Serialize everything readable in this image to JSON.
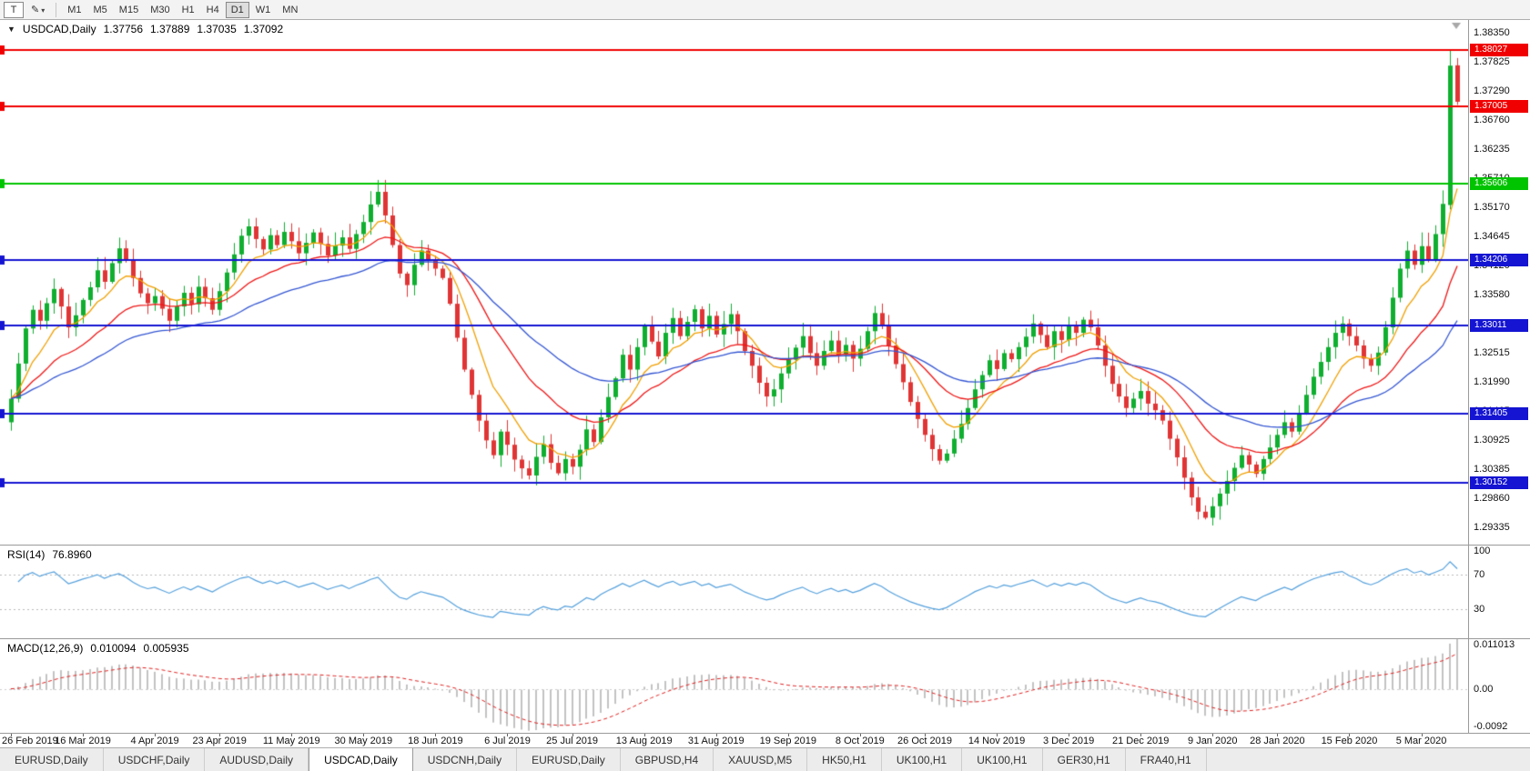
{
  "toolbar": {
    "text_tool": "T",
    "draw_tool_icon": "✎",
    "dropdown_icon": "▾",
    "timeframes": [
      "M1",
      "M5",
      "M15",
      "M30",
      "H1",
      "H4",
      "D1",
      "W1",
      "MN"
    ],
    "active_timeframe": "D1"
  },
  "chart_header": {
    "collapse_icon": "▼",
    "symbol": "USDCAD,Daily",
    "open": "1.37756",
    "high": "1.37889",
    "low": "1.37035",
    "close": "1.37092"
  },
  "chart_data": {
    "type": "candlestick",
    "symbol": "USDCAD",
    "timeframe": "Daily",
    "y_ticks": [
      "1.38350",
      "1.37825",
      "1.37290",
      "1.36760",
      "1.36235",
      "1.35710",
      "1.35170",
      "1.34645",
      "1.34120",
      "1.33580",
      "1.33055",
      "1.32515",
      "1.31990",
      "1.31465",
      "1.30925",
      "1.30385",
      "1.29860",
      "1.29335"
    ],
    "price_at_first_tick": 1.3835,
    "price_at_last_tick": 1.29335,
    "x_ticks": [
      "26 Feb 2019",
      "16 Mar 2019",
      "4 Apr 2019",
      "23 Apr 2019",
      "11 May 2019",
      "30 May 2019",
      "18 Jun 2019",
      "6 Jul 2019",
      "25 Jul 2019",
      "13 Aug 2019",
      "31 Aug 2019",
      "19 Sep 2019",
      "8 Oct 2019",
      "26 Oct 2019",
      "14 Nov 2019",
      "3 Dec 2019",
      "21 Dec 2019",
      "9 Jan 2020",
      "28 Jan 2020",
      "15 Feb 2020",
      "5 Mar 2020"
    ],
    "hlines": [
      {
        "price": 1.38027,
        "label": "1.38027",
        "color": "#f00000"
      },
      {
        "price": 1.37005,
        "label": "1.37005",
        "color": "#f00000"
      },
      {
        "price": 1.35606,
        "label": "1.35606",
        "color": "#00c400"
      },
      {
        "price": 1.34206,
        "label": "1.34206",
        "color": "#1414d2"
      },
      {
        "price": 1.33011,
        "label": "1.33011",
        "color": "#1414d2"
      },
      {
        "price": 1.31405,
        "label": "1.31405",
        "color": "#1414d2"
      },
      {
        "price": 1.30152,
        "label": "1.30152",
        "color": "#1414d2"
      }
    ],
    "first_open": 1.3125,
    "closes": [
      1.3168,
      1.3232,
      1.3296,
      1.333,
      1.331,
      1.3342,
      1.3368,
      1.3336,
      1.3298,
      1.332,
      1.3348,
      1.3371,
      1.3402,
      1.3381,
      1.3415,
      1.3442,
      1.342,
      1.3388,
      1.336,
      1.3342,
      1.3355,
      1.3332,
      1.331,
      1.3336,
      1.3361,
      1.334,
      1.3372,
      1.3351,
      1.333,
      1.3364,
      1.3398,
      1.3431,
      1.3465,
      1.3482,
      1.3459,
      1.344,
      1.3466,
      1.3448,
      1.3472,
      1.3455,
      1.3433,
      1.3452,
      1.3471,
      1.345,
      1.3429,
      1.3447,
      1.3462,
      1.3441,
      1.3468,
      1.349,
      1.3522,
      1.3545,
      1.3502,
      1.3448,
      1.3396,
      1.3375,
      1.3412,
      1.3438,
      1.3421,
      1.3405,
      1.3388,
      1.3341,
      1.3279,
      1.3221,
      1.3175,
      1.3128,
      1.3092,
      1.3065,
      1.3108,
      1.3084,
      1.3057,
      1.3041,
      1.3028,
      1.3062,
      1.3085,
      1.3051,
      1.3032,
      1.3058,
      1.3044,
      1.3075,
      1.3112,
      1.3089,
      1.3134,
      1.3171,
      1.3205,
      1.3248,
      1.3221,
      1.3262,
      1.3301,
      1.3272,
      1.3245,
      1.3288,
      1.3315,
      1.3282,
      1.3308,
      1.3331,
      1.3296,
      1.3319,
      1.3285,
      1.3304,
      1.3322,
      1.3291,
      1.3255,
      1.3228,
      1.3197,
      1.3172,
      1.3185,
      1.3214,
      1.3239,
      1.3261,
      1.3282,
      1.3251,
      1.3228,
      1.3255,
      1.3274,
      1.3248,
      1.3266,
      1.3241,
      1.3259,
      1.3291,
      1.3324,
      1.3302,
      1.3265,
      1.3231,
      1.3198,
      1.3162,
      1.3131,
      1.3102,
      1.3076,
      1.3055,
      1.3068,
      1.3095,
      1.3122,
      1.3151,
      1.3185,
      1.3211,
      1.3238,
      1.3222,
      1.3251,
      1.324,
      1.3262,
      1.3281,
      1.3305,
      1.3284,
      1.3262,
      1.3291,
      1.3275,
      1.3301,
      1.3288,
      1.3312,
      1.3298,
      1.3265,
      1.3228,
      1.3195,
      1.3172,
      1.3151,
      1.3168,
      1.3182,
      1.3159,
      1.3147,
      1.3128,
      1.3095,
      1.3061,
      1.3024,
      1.2988,
      1.2962,
      1.2951,
      1.2972,
      1.2995,
      1.3018,
      1.3042,
      1.3065,
      1.3048,
      1.3031,
      1.3058,
      1.3079,
      1.3102,
      1.3125,
      1.3108,
      1.3142,
      1.3175,
      1.3208,
      1.3235,
      1.3262,
      1.3288,
      1.3305,
      1.3282,
      1.3265,
      1.3241,
      1.3228,
      1.3252,
      1.3298,
      1.3352,
      1.3405,
      1.3438,
      1.3412,
      1.3446,
      1.3421,
      1.3468,
      1.3523,
      1.3775,
      1.3709
    ],
    "spike_candle": {
      "open": 1.3521,
      "high": 1.38027,
      "low": 1.3513,
      "close": 1.3775
    },
    "last_candle": {
      "open": 1.37756,
      "high": 1.37889,
      "low": 1.37035,
      "close": 1.37092
    },
    "moving_averages": [
      {
        "period": 8,
        "color": "#f0a000"
      },
      {
        "period": 20,
        "color": "#ee1515"
      },
      {
        "period": 40,
        "color": "#3355d2"
      }
    ],
    "colors": {
      "up": "#0fae2f",
      "down": "#e03535"
    }
  },
  "rsi": {
    "label": "RSI(14)",
    "value": "76.8960",
    "period": 14,
    "color": "#54a0dc",
    "levels": [
      {
        "label": "100",
        "value": 100,
        "line": false
      },
      {
        "label": "70",
        "value": 70,
        "line": true
      },
      {
        "label": "30",
        "value": 30,
        "line": true
      }
    ]
  },
  "macd": {
    "label": "MACD(12,26,9)",
    "value_main": "0.010094",
    "value_signal": "0.005935",
    "fast": 12,
    "slow": 26,
    "signal": 9,
    "hist_color": "#c2c2c2",
    "signal_color": "#e02020",
    "axis": [
      {
        "label": "0.011013",
        "value": 0.011013
      },
      {
        "label": "0.00",
        "value": 0
      },
      {
        "label": "-0.0092",
        "value": -0.0092
      }
    ]
  },
  "tabs": {
    "items": [
      "EURUSD,Daily",
      "USDCHF,Daily",
      "AUDUSD,Daily",
      "USDCAD,Daily",
      "USDCNH,Daily",
      "EURUSD,Daily",
      "GBPUSD,H4",
      "XAUUSD,M5",
      "HK50,H1",
      "UK100,H1",
      "UK100,H1",
      "GER30,H1",
      "FRA40,H1"
    ],
    "active_index": 3
  }
}
